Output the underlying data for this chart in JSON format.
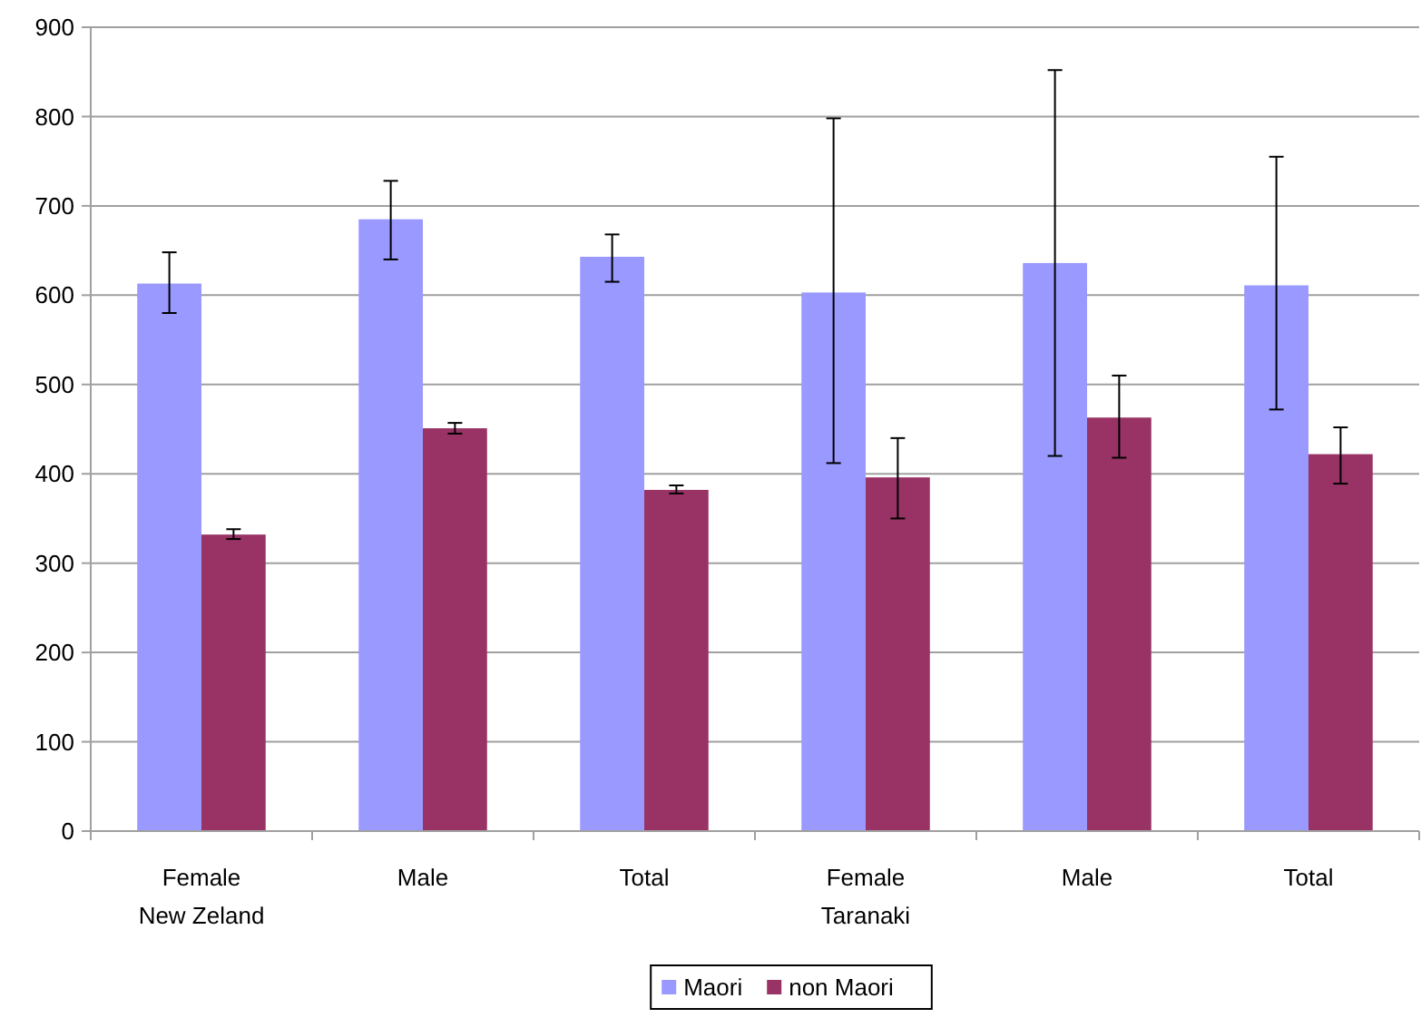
{
  "chart_data": {
    "type": "bar",
    "categories": [
      "Female\nNew Zeland",
      "Male",
      "Total",
      "Female\nTaranaki",
      "Male",
      "Total"
    ],
    "series": [
      {
        "name": "Maori",
        "color": "#9999ff",
        "values": [
          613,
          685,
          643,
          603,
          636,
          611
        ],
        "errors": [
          [
            580,
            648
          ],
          [
            640,
            728
          ],
          [
            615,
            668
          ],
          [
            412,
            798
          ],
          [
            420,
            852
          ],
          [
            472,
            755
          ]
        ]
      },
      {
        "name": "non Maori",
        "color": "#993366",
        "values": [
          332,
          451,
          382,
          396,
          463,
          422
        ],
        "errors": [
          [
            327,
            338
          ],
          [
            445,
            457
          ],
          [
            378,
            387
          ],
          [
            350,
            440
          ],
          [
            418,
            510
          ],
          [
            389,
            452
          ]
        ]
      }
    ],
    "ylim": [
      0,
      900
    ],
    "yticks": [
      0,
      100,
      200,
      300,
      400,
      500,
      600,
      700,
      800,
      900
    ],
    "grid": "y",
    "legend": "bottom"
  }
}
